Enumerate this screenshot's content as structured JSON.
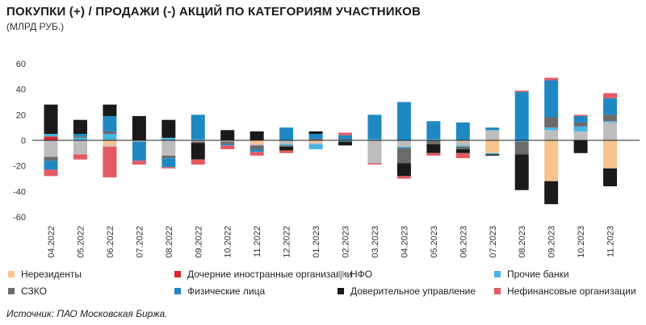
{
  "chart_data": {
    "type": "bar",
    "stacked": true,
    "title": "ПОКУПКИ (+) / ПРОДАЖИ (-) АКЦИЙ ПО КАТЕГОРИЯМ УЧАСТНИКОВ",
    "subtitle": "(МЛРД РУБ.)",
    "source": "Источник: ПАО Московская Биржа.",
    "ylim": [
      -60,
      60
    ],
    "yticks": [
      "60",
      "40",
      "20",
      "0",
      "-20",
      "-40",
      "-60"
    ],
    "ytick_values": [
      60,
      40,
      20,
      0,
      -20,
      -40,
      -60
    ],
    "grid": false,
    "legend_position": "bottom",
    "categories": [
      "04.2022",
      "05.2022",
      "06.2022",
      "07.2022",
      "08.2022",
      "09.2022",
      "10.2022",
      "11.2022",
      "12.2022",
      "01.2023",
      "02.2023",
      "03.2023",
      "04.2023",
      "05.2023",
      "06.2023",
      "07.2023",
      "08.2023",
      "09.2023",
      "10.2023",
      "11.2023"
    ],
    "series": [
      {
        "name": "Нерезиденты",
        "color": "#f7c38f",
        "values": [
          0,
          0,
          -4,
          0,
          0,
          0,
          0,
          -3,
          0,
          -2,
          0,
          0,
          0,
          0,
          -1,
          -10,
          0,
          -32,
          0,
          -22
        ]
      },
      {
        "name": "Дочерние иностранные организации",
        "color": "#d7262e",
        "values": [
          3,
          0,
          0,
          0,
          0,
          0,
          0,
          0,
          0,
          0,
          0,
          0,
          0,
          0,
          0,
          0,
          0,
          0,
          0,
          0
        ]
      },
      {
        "name": "НФО",
        "color": "#bdbdbd",
        "values": [
          -13,
          -11,
          -1,
          -1,
          -12,
          -1,
          -1,
          -1,
          -3,
          -1,
          0,
          -18,
          -5,
          0,
          -3,
          8,
          0,
          8,
          7,
          14
        ]
      },
      {
        "name": "Прочие банки",
        "color": "#47b4e2",
        "values": [
          2,
          2,
          5,
          0,
          2,
          1,
          0,
          0,
          -1,
          -4,
          -1,
          1,
          -1,
          1,
          -1,
          -1,
          -1,
          2,
          4,
          1
        ]
      },
      {
        "name": "СЗКО",
        "color": "#6b6b6b",
        "values": [
          -3,
          1,
          2,
          0,
          -2,
          -1,
          -2,
          -3,
          -1,
          1,
          1,
          0,
          -12,
          -3,
          -2,
          0,
          -10,
          8,
          3,
          5
        ]
      },
      {
        "name": "Физические лица",
        "color": "#1f88c3",
        "values": [
          -7,
          2,
          12,
          -15,
          -7,
          19,
          -1,
          -2,
          10,
          4,
          3,
          19,
          30,
          14,
          14,
          2,
          38,
          29,
          5,
          13
        ]
      },
      {
        "name": "Доверительное управление",
        "color": "#1a1a1a",
        "values": [
          23,
          11,
          9,
          19,
          14,
          -13,
          8,
          7,
          -3,
          2,
          -3,
          0,
          -10,
          -7,
          -3,
          -1,
          -28,
          -18,
          -10,
          -14
        ]
      },
      {
        "name": "Нефинансовые организации",
        "color": "#e55a62",
        "values": [
          -5,
          -4,
          -24,
          -3,
          -1,
          -4,
          -3,
          -3,
          -2,
          0,
          2,
          -1,
          -2,
          -2,
          -4,
          0,
          1,
          2,
          1,
          4
        ]
      }
    ]
  },
  "legend_rows": [
    [
      "Нерезиденты",
      "Дочерние иностранные организации",
      "НФО",
      "Прочие банки"
    ],
    [
      "СЗКО",
      "Физические лица",
      "Доверительное управление",
      "Нефинансовые организации"
    ]
  ]
}
